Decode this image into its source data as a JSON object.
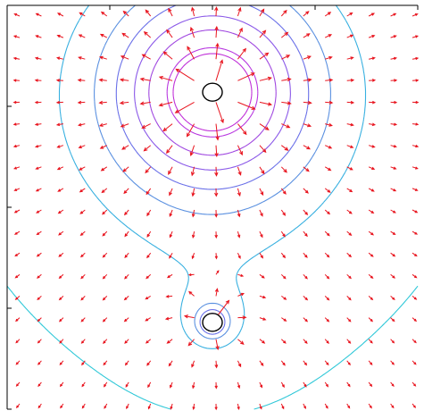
{
  "chart_data": {
    "type": "vector-field-contour",
    "title": "",
    "xlabel": "",
    "ylabel": "",
    "xlim": [
      -1,
      1
    ],
    "ylim": [
      -1,
      1
    ],
    "grid": false,
    "legend": "none",
    "charges": [
      {
        "name": "",
        "x": 0.0,
        "y": 0.57,
        "sign": "positive",
        "q": 1.0
      },
      {
        "name": "",
        "x": 0.0,
        "y": -0.57,
        "sign": "positive",
        "q": 0.08
      }
    ],
    "field_arrows": {
      "color": "#e8141e",
      "grid_x_count": 19,
      "grid_y_count": 19
    },
    "potential_contours": {
      "levels": [
        0.8,
        1.4,
        1.8,
        2.2,
        2.7,
        3.3,
        4.6,
        5.3
      ],
      "colors": [
        "#30c8d8",
        "#38b0e0",
        "#5a90e0",
        "#6a70e8",
        "#8a58e8",
        "#a048e0",
        "#b838e0",
        "#c030d8"
      ]
    },
    "colors": {
      "arrow": "#e8141e",
      "axis": "#000000",
      "charge_circle": "#000000",
      "background": "#ffffff"
    }
  }
}
